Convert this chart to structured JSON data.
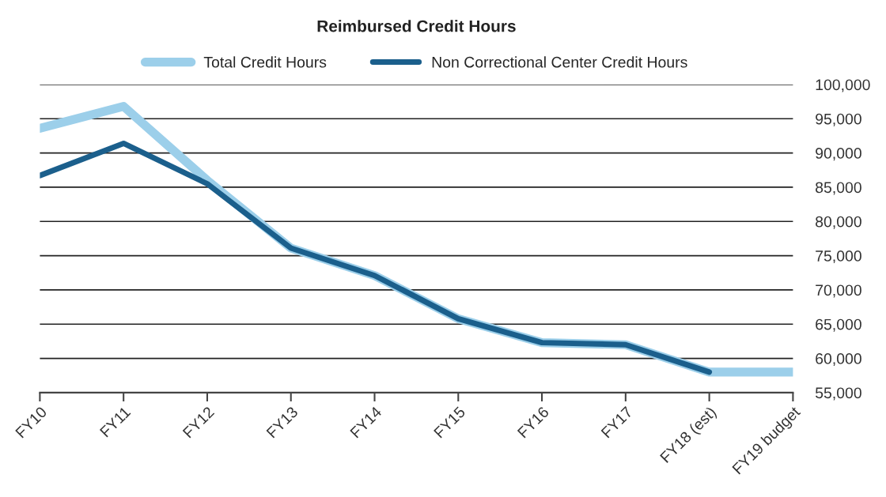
{
  "chart_data": {
    "type": "line",
    "title": "Reimbursed Credit Hours",
    "categories": [
      "FY10",
      "FY11",
      "FY12",
      "FY13",
      "FY14",
      "FY15",
      "FY16",
      "FY17",
      "FY18 (est)",
      "FY19 budget"
    ],
    "series": [
      {
        "name": "Total Credit Hours",
        "color": "#9ccfea",
        "values": [
          93600,
          96800,
          86000,
          76100,
          72100,
          65800,
          62300,
          62000,
          58000,
          58000
        ]
      },
      {
        "name": "Non Correctional Center Credit Hours",
        "color": "#1b5f8c",
        "values": [
          86700,
          91400,
          85500,
          76100,
          72100,
          65800,
          62300,
          62000,
          58000,
          null
        ]
      }
    ],
    "ylim": [
      55000,
      100000
    ],
    "yticks": [
      {
        "value": 55000,
        "label": "55,000"
      },
      {
        "value": 60000,
        "label": "60,000"
      },
      {
        "value": 65000,
        "label": "65,000"
      },
      {
        "value": 70000,
        "label": "70,000"
      },
      {
        "value": 75000,
        "label": "75,000"
      },
      {
        "value": 80000,
        "label": "80,000"
      },
      {
        "value": 85000,
        "label": "85,000"
      },
      {
        "value": 90000,
        "label": "90,000"
      },
      {
        "value": 95000,
        "label": "95,000"
      },
      {
        "value": 100000,
        "label": "100,000"
      }
    ],
    "grid": "y",
    "legend": "top",
    "marker": "none",
    "line_style": "solid"
  }
}
